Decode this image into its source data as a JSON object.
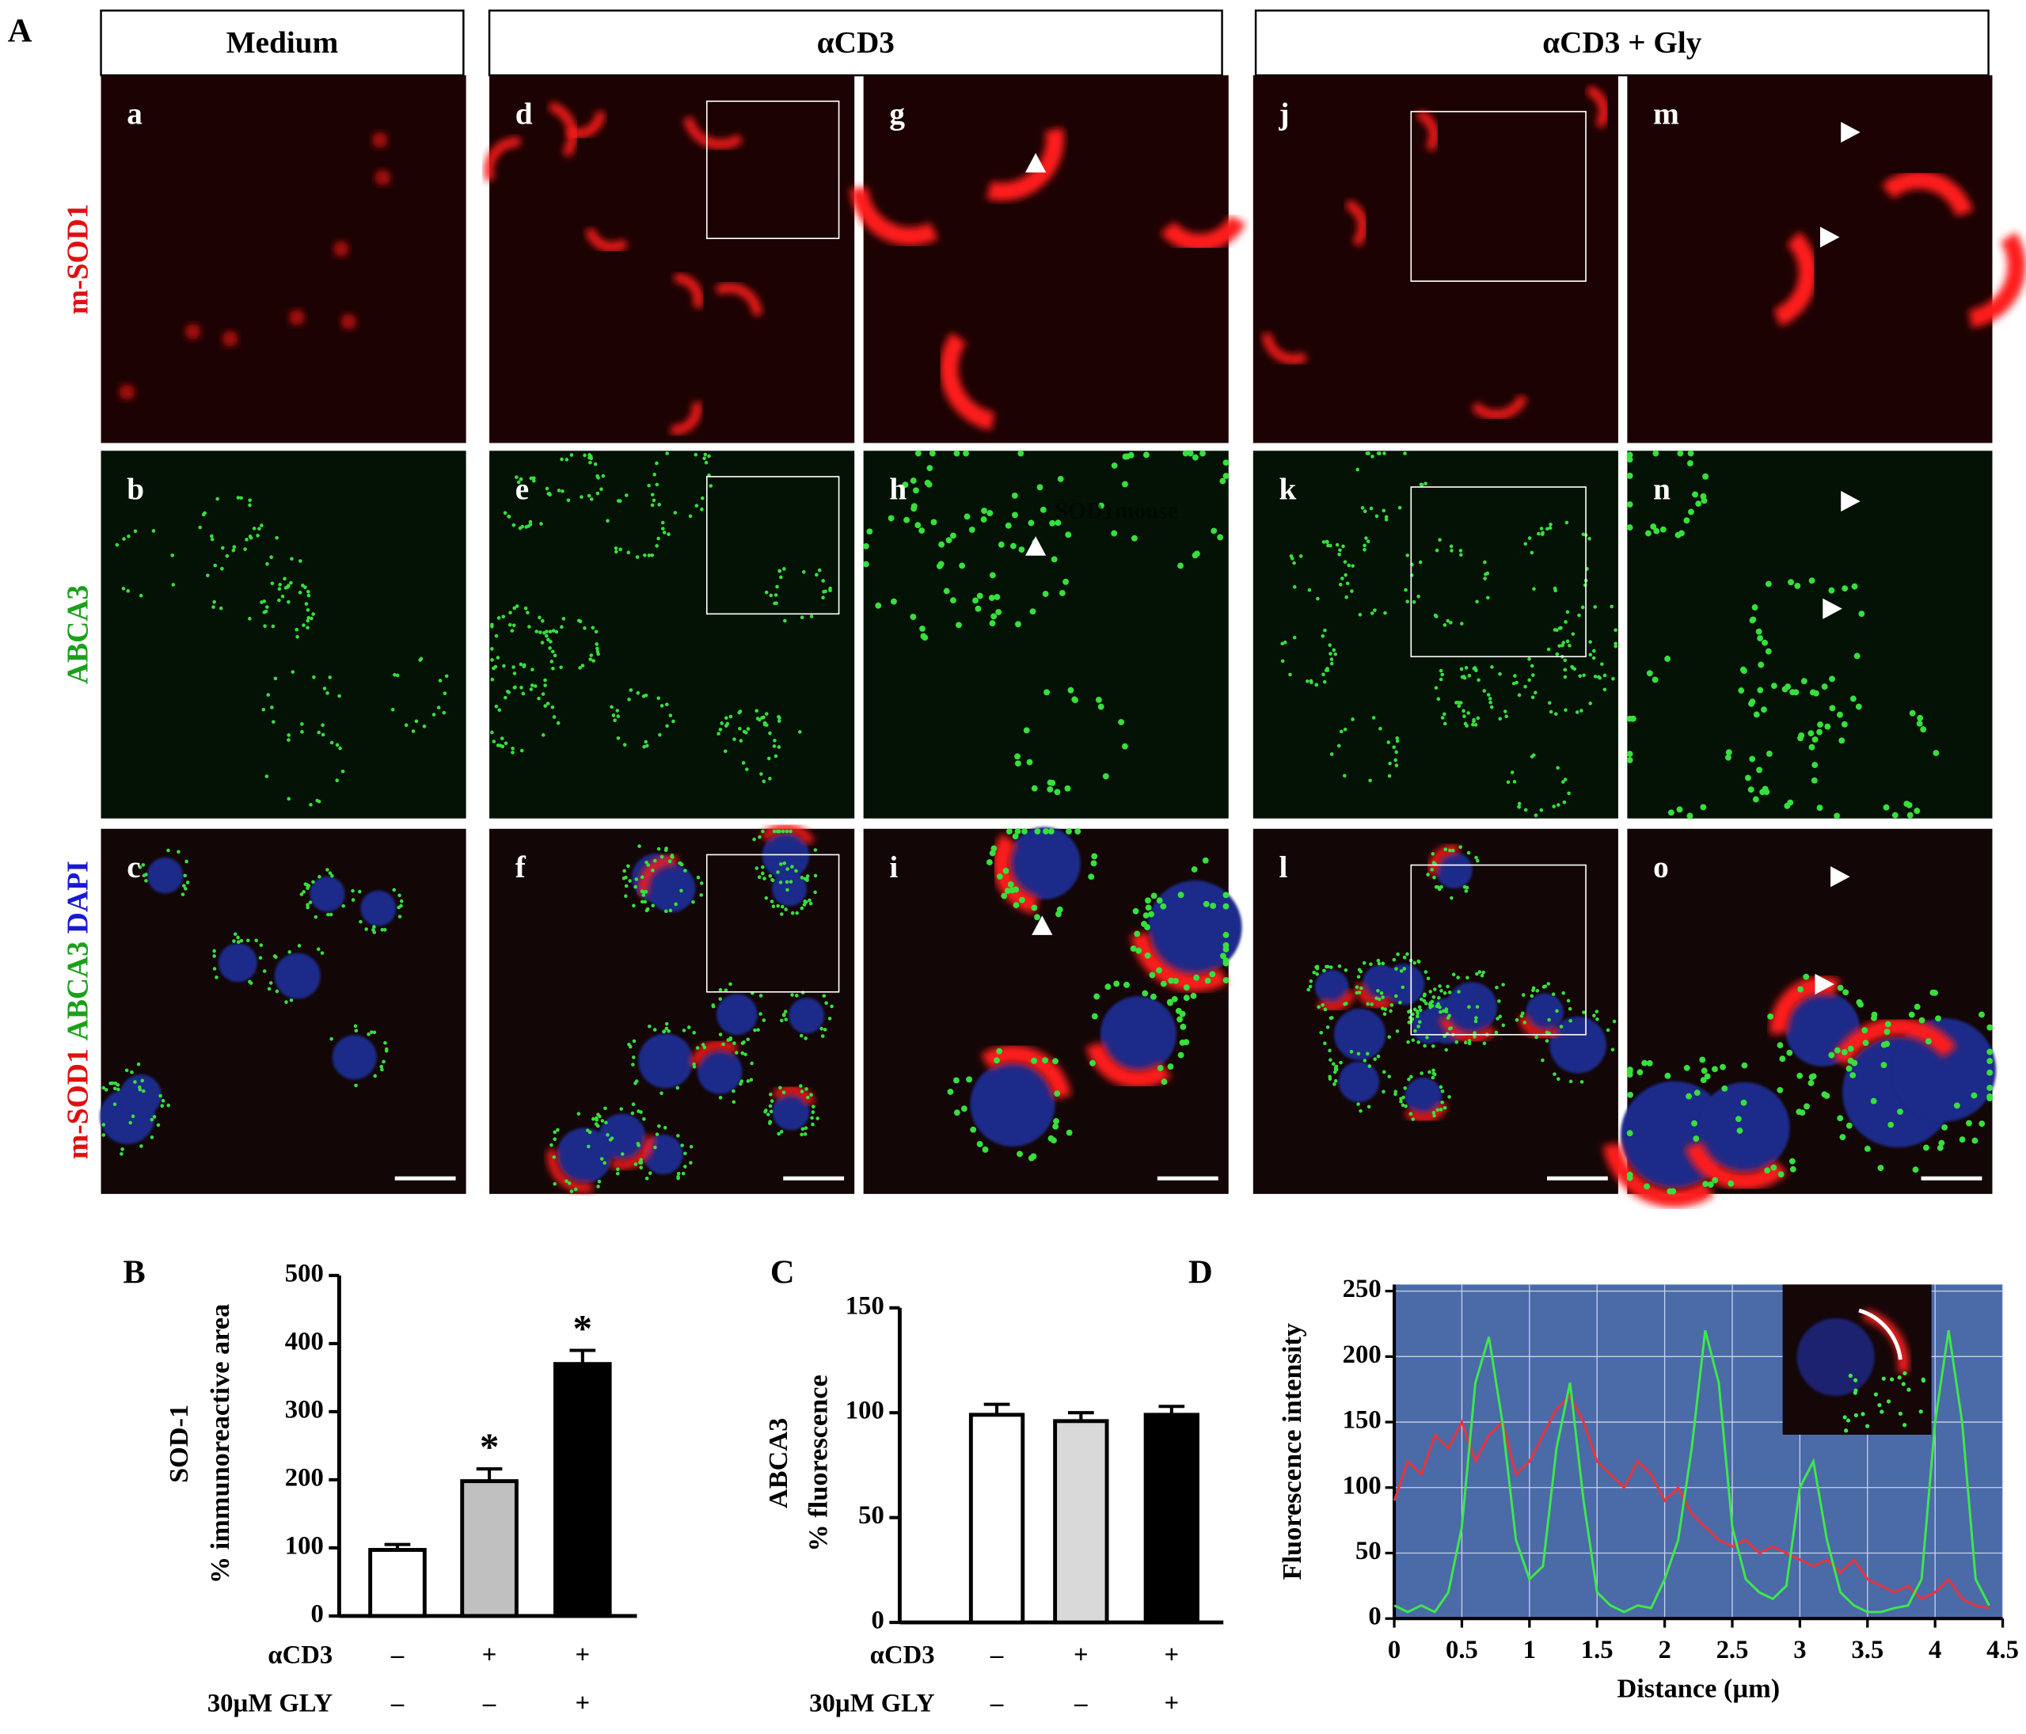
{
  "panel_a": {
    "label": "A",
    "columns": [
      "Medium",
      "αCD3",
      "αCD3 + Gly"
    ],
    "row_labels": [
      [
        "m-SOD1"
      ],
      [
        "ABCA3"
      ],
      [
        "m-SOD1",
        "ABCA3",
        "DAPI"
      ]
    ],
    "panel_letters": [
      [
        "a",
        "b",
        "c"
      ],
      [
        "d",
        "e",
        "f"
      ],
      [
        "g",
        "h",
        "i"
      ],
      [
        "j",
        "k",
        "l"
      ],
      [
        "m",
        "n",
        "o"
      ]
    ],
    "overlay_text": "SOD1mouse"
  },
  "chart_data": [
    {
      "type": "bar",
      "panel_label": "B",
      "ylabel": [
        "SOD-1",
        "% immunoreactive area"
      ],
      "values": [
        97,
        198,
        370
      ],
      "errors": [
        8,
        18,
        20
      ],
      "colors": [
        "#ffffff",
        "#c0c0c0",
        "#000000"
      ],
      "annotations": [
        {
          "index": 1,
          "text": "*"
        },
        {
          "index": 2,
          "text": "*"
        }
      ],
      "conditions": [
        {
          "label": "αCD3",
          "values": [
            "–",
            "+",
            "+"
          ]
        },
        {
          "label": "30µM GLY",
          "values": [
            "–",
            "–",
            "+"
          ]
        }
      ],
      "ylim": [
        0,
        500
      ],
      "yticks": [
        0,
        100,
        200,
        300,
        400,
        500
      ]
    },
    {
      "type": "bar",
      "panel_label": "C",
      "ylabel": [
        "ABCA3",
        "% fluorescence"
      ],
      "values": [
        99,
        96,
        99
      ],
      "errors": [
        5,
        4,
        4
      ],
      "colors": [
        "#ffffff",
        "#d9d9d9",
        "#000000"
      ],
      "conditions": [
        {
          "label": "αCD3",
          "values": [
            "–",
            "+",
            "+"
          ]
        },
        {
          "label": "30µM GLY",
          "values": [
            "–",
            "–",
            "+"
          ]
        }
      ],
      "ylim": [
        0,
        150
      ],
      "yticks": [
        0,
        50,
        100,
        150
      ]
    },
    {
      "type": "line",
      "panel_label": "D",
      "xlabel": "Distance (µm)",
      "ylabel": "Fluorescence intensity",
      "x": [
        0,
        0.1,
        0.2,
        0.3,
        0.4,
        0.5,
        0.6,
        0.7,
        0.8,
        0.9,
        1.0,
        1.1,
        1.2,
        1.3,
        1.4,
        1.5,
        1.6,
        1.7,
        1.8,
        1.9,
        2.0,
        2.1,
        2.2,
        2.3,
        2.4,
        2.5,
        2.6,
        2.7,
        2.8,
        2.9,
        3.0,
        3.1,
        3.2,
        3.3,
        3.4,
        3.5,
        3.6,
        3.7,
        3.8,
        3.9,
        4.0,
        4.1,
        4.2,
        4.3,
        4.4
      ],
      "series": [
        {
          "color": "#e8343c",
          "values": [
            90,
            120,
            110,
            140,
            130,
            150,
            120,
            140,
            150,
            110,
            120,
            140,
            160,
            170,
            150,
            120,
            110,
            100,
            120,
            110,
            90,
            100,
            80,
            70,
            60,
            55,
            60,
            50,
            55,
            50,
            45,
            40,
            45,
            35,
            45,
            30,
            25,
            20,
            25,
            15,
            20,
            30,
            15,
            10,
            8
          ]
        },
        {
          "color": "#3ee84a",
          "values": [
            10,
            5,
            10,
            5,
            20,
            70,
            180,
            215,
            150,
            60,
            30,
            40,
            130,
            180,
            90,
            20,
            10,
            5,
            10,
            8,
            30,
            60,
            130,
            220,
            180,
            70,
            30,
            20,
            15,
            25,
            100,
            120,
            60,
            20,
            10,
            5,
            5,
            8,
            10,
            30,
            150,
            220,
            150,
            30,
            10
          ]
        }
      ],
      "background": "#4b6aa8",
      "grid": true,
      "xlim": [
        0,
        4.5
      ],
      "xticks": [
        0,
        0.5,
        1,
        1.5,
        2,
        2.5,
        3,
        3.5,
        4,
        4.5
      ],
      "ylim": [
        0,
        255
      ],
      "yticks": [
        0,
        50,
        100,
        150,
        200,
        250
      ]
    }
  ]
}
